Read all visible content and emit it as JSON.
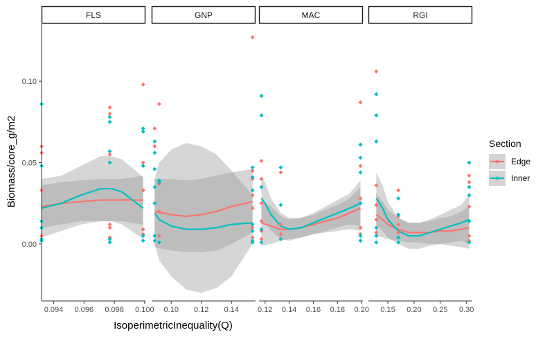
{
  "chart_data": {
    "type": "scatter",
    "smooth": true,
    "facet_by": "site",
    "xlabel": "IsoperimetricInequality(Q)",
    "ylabel": "Biomass/core_g/m2",
    "y_ticks": [
      0.0,
      0.05,
      0.1
    ],
    "y_tick_labels": [
      "0.00",
      "0.05",
      "0.10"
    ],
    "ylim": [
      -0.035,
      0.135
    ],
    "legend": {
      "title": "Section",
      "placement": "right",
      "entries": [
        {
          "name": "Edge",
          "color": "#F8766D"
        },
        {
          "name": "Inner",
          "color": "#00BFC4"
        }
      ]
    },
    "colors": {
      "Edge": "#F8766D",
      "Inner": "#00BFC4",
      "ribbon": "#999999",
      "strip_border": "#1a1a1a"
    },
    "facets": [
      {
        "label": "FLS",
        "xlim": [
          0.0932,
          0.10005
        ],
        "x_ticks": [
          0.094,
          0.096,
          0.098,
          0.1
        ],
        "x_tick_labels": [
          "0.094",
          "0.096",
          "0.098",
          "0.100"
        ],
        "points": {
          "Edge": [
            [
              0.0932,
              0.06
            ],
            [
              0.0932,
              0.056
            ],
            [
              0.0932,
              0.033
            ],
            [
              0.0932,
              0.005
            ],
            [
              0.0977,
              0.084
            ],
            [
              0.0977,
              0.08
            ],
            [
              0.0977,
              0.055
            ],
            [
              0.0977,
              0.012
            ],
            [
              0.0977,
              0.01
            ],
            [
              0.0977,
              0.004
            ],
            [
              0.0999,
              0.098
            ],
            [
              0.0999,
              0.05
            ],
            [
              0.0999,
              0.033
            ],
            [
              0.0999,
              0.009
            ],
            [
              0.0999,
              0.006
            ]
          ],
          "Inner": [
            [
              0.0932,
              0.086
            ],
            [
              0.0932,
              0.048
            ],
            [
              0.0932,
              0.014
            ],
            [
              0.0932,
              0.01
            ],
            [
              0.0932,
              0.003
            ],
            [
              0.0932,
              0.002
            ],
            [
              0.0977,
              0.078
            ],
            [
              0.0977,
              0.075
            ],
            [
              0.0977,
              0.057
            ],
            [
              0.0977,
              0.05
            ],
            [
              0.0977,
              0.003
            ],
            [
              0.0977,
              0.001
            ],
            [
              0.0999,
              0.071
            ],
            [
              0.0999,
              0.069
            ],
            [
              0.0999,
              0.048
            ],
            [
              0.0999,
              0.005
            ],
            [
              0.0999,
              0.002
            ]
          ]
        },
        "smooth": {
          "Edge": {
            "x": [
              0.0932,
              0.0945,
              0.0958,
              0.0971,
              0.0985,
              0.0999
            ],
            "y": [
              0.023,
              0.025,
              0.026,
              0.027,
              0.027,
              0.027
            ],
            "lower": [
              0.01,
              0.012,
              0.014,
              0.014,
              0.014,
              0.012
            ],
            "upper": [
              0.036,
              0.038,
              0.039,
              0.04,
              0.04,
              0.042
            ]
          },
          "Inner": {
            "x": [
              0.0932,
              0.0945,
              0.0958,
              0.0971,
              0.0978,
              0.0985,
              0.0999
            ],
            "y": [
              0.022,
              0.025,
              0.03,
              0.034,
              0.034,
              0.032,
              0.022
            ],
            "lower": [
              0.004,
              0.008,
              0.012,
              0.014,
              0.014,
              0.012,
              0.003
            ],
            "upper": [
              0.04,
              0.042,
              0.048,
              0.054,
              0.054,
              0.052,
              0.041
            ]
          }
        }
      },
      {
        "label": "GNP",
        "xlim": [
          0.087,
          0.156
        ],
        "x_ticks": [
          0.1,
          0.12,
          0.14
        ],
        "x_tick_labels": [
          "0.10",
          "0.12",
          "0.14"
        ],
        "points": {
          "Edge": [
            [
              0.089,
              0.071
            ],
            [
              0.089,
              0.06
            ],
            [
              0.092,
              0.086
            ],
            [
              0.092,
              0.037
            ],
            [
              0.092,
              0.02
            ],
            [
              0.092,
              0.005
            ],
            [
              0.154,
              0.127
            ],
            [
              0.154,
              0.045
            ],
            [
              0.154,
              0.04
            ],
            [
              0.154,
              0.03
            ],
            [
              0.154,
              0.022
            ],
            [
              0.154,
              0.01
            ],
            [
              0.154,
              0.004
            ]
          ],
          "Inner": [
            [
              0.089,
              0.063
            ],
            [
              0.089,
              0.056
            ],
            [
              0.089,
              0.046
            ],
            [
              0.089,
              0.035
            ],
            [
              0.089,
              0.025
            ],
            [
              0.089,
              0.005
            ],
            [
              0.089,
              0.002
            ],
            [
              0.092,
              0.039
            ],
            [
              0.092,
              0.038
            ],
            [
              0.092,
              0.001
            ],
            [
              0.154,
              0.047
            ],
            [
              0.154,
              0.041
            ],
            [
              0.154,
              0.033
            ],
            [
              0.154,
              0.012
            ],
            [
              0.154,
              0.008
            ],
            [
              0.154,
              0.002
            ],
            [
              0.154,
              0.001
            ]
          ]
        },
        "smooth": {
          "Edge": {
            "x": [
              0.089,
              0.1,
              0.11,
              0.12,
              0.13,
              0.14,
              0.154
            ],
            "y": [
              0.02,
              0.018,
              0.017,
              0.018,
              0.02,
              0.023,
              0.026
            ],
            "lower": [
              -0.002,
              -0.004,
              -0.005,
              -0.005,
              -0.004,
              0.0,
              0.007
            ],
            "upper": [
              0.04,
              0.04,
              0.039,
              0.04,
              0.042,
              0.044,
              0.046
            ]
          },
          "Inner": {
            "x": [
              0.089,
              0.092,
              0.1,
              0.11,
              0.12,
              0.13,
              0.14,
              0.154
            ],
            "y": [
              0.019,
              0.015,
              0.011,
              0.009,
              0.009,
              0.01,
              0.012,
              0.013
            ],
            "lower": [
              0.0,
              -0.01,
              -0.02,
              -0.028,
              -0.03,
              -0.027,
              -0.02,
              0.0
            ],
            "upper": [
              0.04,
              0.05,
              0.058,
              0.062,
              0.06,
              0.055,
              0.045,
              0.03
            ]
          }
        }
      },
      {
        "label": "MAC",
        "xlim": [
          0.115,
          0.201
        ],
        "x_ticks": [
          0.12,
          0.14,
          0.16,
          0.18,
          0.2
        ],
        "x_tick_labels": [
          "0.12",
          "0.14",
          "0.16",
          "0.18",
          "0.20"
        ],
        "points": {
          "Edge": [
            [
              0.117,
              0.051
            ],
            [
              0.117,
              0.04
            ],
            [
              0.117,
              0.025
            ],
            [
              0.117,
              0.014
            ],
            [
              0.117,
              0.008
            ],
            [
              0.117,
              0.003
            ],
            [
              0.133,
              0.044
            ],
            [
              0.133,
              0.012
            ],
            [
              0.133,
              0.006
            ],
            [
              0.199,
              0.087
            ],
            [
              0.199,
              0.048
            ],
            [
              0.199,
              0.028
            ],
            [
              0.199,
              0.01
            ],
            [
              0.199,
              0.006
            ]
          ],
          "Inner": [
            [
              0.117,
              0.091
            ],
            [
              0.117,
              0.079
            ],
            [
              0.117,
              0.035
            ],
            [
              0.117,
              0.009
            ],
            [
              0.117,
              0.001
            ],
            [
              0.133,
              0.047
            ],
            [
              0.133,
              0.024
            ],
            [
              0.133,
              0.003
            ],
            [
              0.199,
              0.061
            ],
            [
              0.199,
              0.053
            ],
            [
              0.199,
              0.044
            ],
            [
              0.199,
              0.025
            ],
            [
              0.199,
              0.005
            ],
            [
              0.199,
              0.002
            ]
          ]
        },
        "smooth": {
          "Edge": {
            "x": [
              0.117,
              0.125,
              0.133,
              0.14,
              0.15,
              0.16,
              0.17,
              0.18,
              0.19,
              0.199
            ],
            "y": [
              0.013,
              0.011,
              0.009,
              0.009,
              0.01,
              0.012,
              0.014,
              0.016,
              0.019,
              0.022
            ],
            "lower": [
              -0.001,
              0.0,
              0.002,
              0.003,
              0.004,
              0.006,
              0.007,
              0.008,
              0.009,
              0.008
            ],
            "upper": [
              0.027,
              0.023,
              0.017,
              0.015,
              0.016,
              0.018,
              0.021,
              0.024,
              0.028,
              0.035
            ]
          },
          "Inner": {
            "x": [
              0.117,
              0.12,
              0.125,
              0.133,
              0.14,
              0.15,
              0.16,
              0.17,
              0.18,
              0.19,
              0.199
            ],
            "y": [
              0.028,
              0.025,
              0.018,
              0.011,
              0.009,
              0.01,
              0.013,
              0.016,
              0.019,
              0.022,
              0.025
            ],
            "lower": [
              0.014,
              0.013,
              0.008,
              0.003,
              0.002,
              0.004,
              0.006,
              0.008,
              0.01,
              0.012,
              0.011
            ],
            "upper": [
              0.042,
              0.038,
              0.028,
              0.019,
              0.016,
              0.016,
              0.019,
              0.023,
              0.027,
              0.031,
              0.039
            ]
          }
        }
      },
      {
        "label": "RGI",
        "xlim": [
          0.113,
          0.311
        ],
        "x_ticks": [
          0.15,
          0.2,
          0.25,
          0.3
        ],
        "x_tick_labels": [
          "0.15",
          "0.20",
          "0.25",
          "0.30"
        ],
        "points": {
          "Edge": [
            [
              0.128,
              0.106
            ],
            [
              0.128,
              0.036
            ],
            [
              0.128,
              0.024
            ],
            [
              0.128,
              0.015
            ],
            [
              0.128,
              0.007
            ],
            [
              0.17,
              0.033
            ],
            [
              0.17,
              0.017
            ],
            [
              0.17,
              0.012
            ],
            [
              0.17,
              0.007
            ],
            [
              0.305,
              0.042
            ],
            [
              0.305,
              0.038
            ],
            [
              0.305,
              0.023
            ],
            [
              0.305,
              0.005
            ],
            [
              0.305,
              0.002
            ]
          ],
          "Inner": [
            [
              0.128,
              0.092
            ],
            [
              0.128,
              0.079
            ],
            [
              0.128,
              0.063
            ],
            [
              0.128,
              0.01
            ],
            [
              0.128,
              0.005
            ],
            [
              0.128,
              0.001
            ],
            [
              0.17,
              0.028
            ],
            [
              0.17,
              0.018
            ],
            [
              0.17,
              0.004
            ],
            [
              0.17,
              0.001
            ],
            [
              0.305,
              0.05
            ],
            [
              0.305,
              0.035
            ],
            [
              0.305,
              0.03
            ],
            [
              0.305,
              0.014
            ],
            [
              0.305,
              0.001
            ]
          ]
        },
        "smooth": {
          "Edge": {
            "x": [
              0.128,
              0.14,
              0.15,
              0.17,
              0.19,
              0.21,
              0.23,
              0.25,
              0.27,
              0.29,
              0.305
            ],
            "y": [
              0.018,
              0.015,
              0.012,
              0.009,
              0.007,
              0.007,
              0.007,
              0.008,
              0.008,
              0.009,
              0.01
            ],
            "lower": [
              0.005,
              0.004,
              0.003,
              0.002,
              0.001,
              0.001,
              0.0,
              0.0,
              -0.001,
              -0.002,
              -0.003
            ],
            "upper": [
              0.031,
              0.026,
              0.021,
              0.016,
              0.013,
              0.013,
              0.014,
              0.016,
              0.017,
              0.02,
              0.023
            ]
          },
          "Inner": {
            "x": [
              0.128,
              0.14,
              0.15,
              0.17,
              0.19,
              0.2,
              0.21,
              0.23,
              0.25,
              0.27,
              0.29,
              0.305
            ],
            "y": [
              0.028,
              0.022,
              0.015,
              0.008,
              0.005,
              0.005,
              0.005,
              0.007,
              0.009,
              0.011,
              0.013,
              0.015
            ],
            "lower": [
              0.012,
              0.008,
              0.004,
              0.0,
              -0.003,
              -0.003,
              -0.003,
              -0.001,
              0.0,
              0.001,
              0.002,
              0.0
            ],
            "upper": [
              0.044,
              0.036,
              0.026,
              0.016,
              0.013,
              0.013,
              0.013,
              0.015,
              0.018,
              0.021,
              0.024,
              0.03
            ]
          }
        }
      }
    ]
  }
}
